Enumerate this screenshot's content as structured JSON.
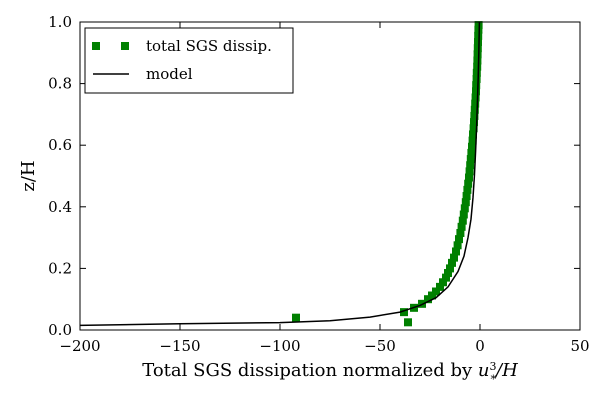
{
  "chart_data": {
    "type": "scatter",
    "title": "",
    "xlabel_main": "Total SGS dissipation normalized by ",
    "xlabel_u": "u",
    "xlabel_sub": "*",
    "xlabel_sup": "3",
    "xlabel_tail": "/H",
    "ylabel": "z/H",
    "xlim": [
      -200,
      50
    ],
    "ylim": [
      0.0,
      1.0
    ],
    "x_ticks": [
      -200,
      -150,
      -100,
      -50,
      0,
      50
    ],
    "x_tick_labels": [
      "−200",
      "−150",
      "−100",
      "−50",
      "0",
      "50"
    ],
    "y_ticks": [
      0.0,
      0.2,
      0.4,
      0.6,
      0.8,
      1.0
    ],
    "y_tick_labels": [
      "0.0",
      "0.2",
      "0.4",
      "0.6",
      "0.8",
      "1.0"
    ],
    "grid": false,
    "legend_position": "top-left",
    "series": [
      {
        "name": "total SGS dissip.",
        "kind": "markers",
        "marker": "square",
        "color": "#008000",
        "points": [
          [
            -92,
            0.04
          ],
          [
            -38,
            0.058
          ],
          [
            -36,
            0.025
          ],
          [
            -33,
            0.072
          ],
          [
            -29,
            0.085
          ],
          [
            -26,
            0.1
          ],
          [
            -24,
            0.112
          ],
          [
            -22,
            0.125
          ],
          [
            -20,
            0.14
          ],
          [
            -18.5,
            0.155
          ],
          [
            -17,
            0.17
          ],
          [
            -16,
            0.185
          ],
          [
            -15,
            0.2
          ],
          [
            -14,
            0.218
          ],
          [
            -13,
            0.235
          ],
          [
            -12,
            0.255
          ],
          [
            -11.2,
            0.275
          ],
          [
            -10.5,
            0.295
          ],
          [
            -9.8,
            0.315
          ],
          [
            -9.2,
            0.335
          ],
          [
            -8.6,
            0.355
          ],
          [
            -8.1,
            0.375
          ],
          [
            -7.6,
            0.395
          ],
          [
            -7.1,
            0.415
          ],
          [
            -6.7,
            0.435
          ],
          [
            -6.3,
            0.455
          ],
          [
            -5.9,
            0.475
          ],
          [
            -5.5,
            0.495
          ],
          [
            -5.2,
            0.515
          ],
          [
            -4.9,
            0.535
          ],
          [
            -4.6,
            0.555
          ],
          [
            -4.3,
            0.575
          ],
          [
            -4.0,
            0.595
          ],
          [
            -3.7,
            0.615
          ],
          [
            -3.5,
            0.635
          ],
          [
            -3.2,
            0.655
          ],
          [
            -3.0,
            0.675
          ],
          [
            -2.8,
            0.695
          ],
          [
            -2.6,
            0.715
          ],
          [
            -2.4,
            0.735
          ],
          [
            -2.2,
            0.755
          ],
          [
            -2.0,
            0.775
          ],
          [
            -1.9,
            0.795
          ],
          [
            -1.7,
            0.815
          ],
          [
            -1.6,
            0.835
          ],
          [
            -1.4,
            0.855
          ],
          [
            -1.3,
            0.875
          ],
          [
            -1.2,
            0.895
          ],
          [
            -1.1,
            0.915
          ],
          [
            -1.0,
            0.935
          ],
          [
            -0.9,
            0.955
          ],
          [
            -0.8,
            0.975
          ],
          [
            -0.7,
            0.99
          ]
        ]
      },
      {
        "name": "model",
        "kind": "line",
        "color": "#000000",
        "points": [
          [
            -200,
            0.015
          ],
          [
            -150,
            0.02
          ],
          [
            -100,
            0.024
          ],
          [
            -75,
            0.03
          ],
          [
            -55,
            0.042
          ],
          [
            -40,
            0.058
          ],
          [
            -30,
            0.08
          ],
          [
            -22,
            0.105
          ],
          [
            -16,
            0.14
          ],
          [
            -11,
            0.19
          ],
          [
            -8,
            0.24
          ],
          [
            -6,
            0.3
          ],
          [
            -4.5,
            0.36
          ],
          [
            -3.5,
            0.43
          ],
          [
            -2.8,
            0.5
          ],
          [
            -2.2,
            0.58
          ],
          [
            -1.7,
            0.66
          ],
          [
            -1.3,
            0.74
          ],
          [
            -0.9,
            0.82
          ],
          [
            -0.6,
            0.9
          ],
          [
            -0.3,
            1.0
          ]
        ]
      }
    ]
  }
}
